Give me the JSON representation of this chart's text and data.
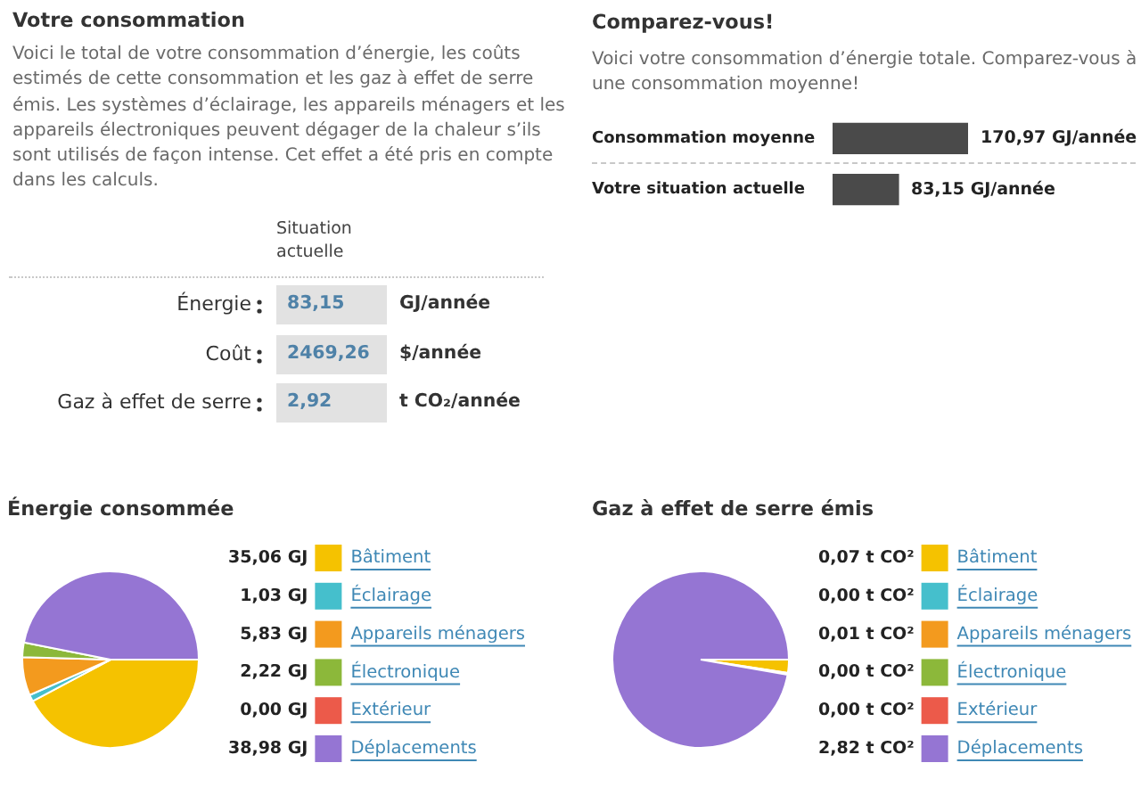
{
  "chart_data": [
    {
      "type": "other",
      "title": "Votre consommation",
      "subtitle": "Voici le total de votre consommation d’énergie, les coûts estimés de cette consommation et les gaz à effet de serre émis. Les systèmes d’éclairage, les appareils ménagers et les appareils électroniques peuvent dégager de la chaleur s’ils sont utilisés de façon intense. Cet effet a été pris en compte dans les calculs.",
      "categories": [
        "Énergie",
        "Coût",
        "Gaz à effet de serre"
      ],
      "values": [
        83.15,
        2469.26,
        2.92
      ],
      "value_labels": [
        "83,15",
        "2469,26",
        "2,92"
      ],
      "annotations": [
        "Situation actuelle",
        "GJ/année",
        "$/année",
        "t CO₂/année"
      ]
    },
    {
      "type": "bar",
      "orientation": "horizontal",
      "title": "Comparez-vous!",
      "subtitle": "Voici votre consommation d’énergie totale. Comparez-vous à une consommation moyenne!",
      "categories": [
        "Consommation moyenne",
        "Votre situation actuelle"
      ],
      "values": [
        170.97,
        83.15
      ],
      "value_labels": [
        "170,97 GJ/année",
        "83,15 GJ/année"
      ],
      "color": "#4a4a4a"
    },
    {
      "type": "pie",
      "title": "Énergie consommée",
      "categories": [
        "Bâtiment",
        "Éclairage",
        "Appareils ménagers",
        "Électronique",
        "Extérieur",
        "Déplacements"
      ],
      "values": [
        35.06,
        1.03,
        5.83,
        2.22,
        0.0,
        38.98
      ],
      "value_labels": [
        "35,06 GJ",
        "1,03 GJ",
        "5,83 GJ",
        "2,22 GJ",
        "0,00 GJ",
        "38,98 GJ"
      ],
      "colors": [
        "#f5c200",
        "#45bfcc",
        "#f39a1e",
        "#8cb83a",
        "#ec5a4a",
        "#9575d3"
      ],
      "legend": "right"
    },
    {
      "type": "pie",
      "title": "Gaz à effet de serre émis",
      "categories": [
        "Bâtiment",
        "Éclairage",
        "Appareils ménagers",
        "Électronique",
        "Extérieur",
        "Déplacements"
      ],
      "values": [
        0.07,
        0.0,
        0.01,
        0.0,
        0.0,
        2.82
      ],
      "value_labels": [
        "0,07 t CO²",
        "0,00 t CO²",
        "0,01 t CO²",
        "0,00 t CO²",
        "0,00 t CO²",
        "2,82 t CO²"
      ],
      "colors": [
        "#f5c200",
        "#45bfcc",
        "#f39a1e",
        "#8cb83a",
        "#ec5a4a",
        "#9575d3"
      ],
      "legend": "right"
    }
  ]
}
